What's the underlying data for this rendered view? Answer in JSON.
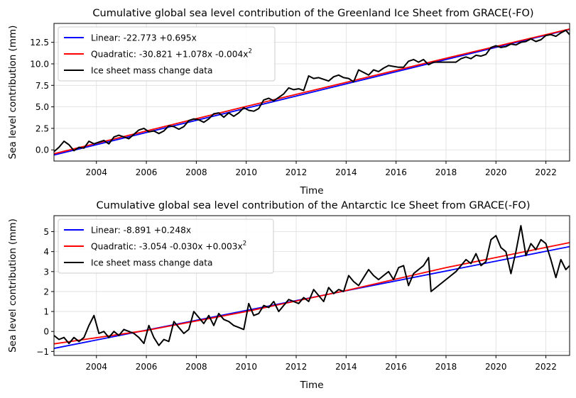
{
  "chart_data": [
    {
      "type": "line",
      "title": "Cumulative global sea level contribution of the Greenland Ice Sheet from GRACE(-FO)",
      "xlabel": "Time",
      "ylabel": "Sea level contribution (mm)",
      "xlim": [
        2002.3,
        2022.95
      ],
      "ylim": [
        -1.3,
        14.7
      ],
      "xticks": [
        "2004",
        "2006",
        "2008",
        "2010",
        "2012",
        "2014",
        "2016",
        "2018",
        "2020",
        "2022"
      ],
      "yticks": [
        "0.0",
        "2.5",
        "5.0",
        "7.5",
        "10.0",
        "12.5"
      ],
      "grid": true,
      "legend_position": "top-left",
      "series": [
        {
          "name": "Linear: -22.773 +0.695x",
          "color": "#0000ff",
          "kind": "fit",
          "x": [
            2002.3,
            2022.95
          ],
          "y": [
            -0.6,
            14.0
          ]
        },
        {
          "name": "Quadratic: -30.821 +1.078x -0.004x",
          "name_sup": "2",
          "color": "#ff0000",
          "kind": "fit",
          "x": [
            2002.3,
            2006.0,
            2010.0,
            2014.0,
            2018.0,
            2022.95
          ],
          "y": [
            -0.45,
            2.2,
            5.05,
            7.85,
            10.65,
            14.05
          ]
        },
        {
          "name": "Ice sheet mass change data",
          "color": "#000000",
          "kind": "data",
          "x": [
            2002.3,
            2002.5,
            2002.7,
            2002.9,
            2003.1,
            2003.3,
            2003.5,
            2003.7,
            2003.9,
            2004.1,
            2004.3,
            2004.5,
            2004.7,
            2004.9,
            2005.1,
            2005.3,
            2005.5,
            2005.7,
            2005.9,
            2006.1,
            2006.3,
            2006.5,
            2006.7,
            2006.9,
            2007.1,
            2007.3,
            2007.5,
            2007.7,
            2007.9,
            2008.1,
            2008.3,
            2008.5,
            2008.7,
            2008.9,
            2009.1,
            2009.3,
            2009.5,
            2009.7,
            2009.9,
            2010.1,
            2010.3,
            2010.5,
            2010.7,
            2010.9,
            2011.1,
            2011.3,
            2011.5,
            2011.7,
            2011.9,
            2012.1,
            2012.3,
            2012.5,
            2012.7,
            2012.9,
            2013.1,
            2013.3,
            2013.5,
            2013.7,
            2013.9,
            2014.1,
            2014.3,
            2014.5,
            2014.7,
            2014.9,
            2015.1,
            2015.3,
            2015.5,
            2015.7,
            2015.9,
            2016.1,
            2016.3,
            2016.5,
            2016.7,
            2016.9,
            2017.1,
            2017.3,
            2017.5,
            2018.4,
            2018.6,
            2018.8,
            2019.0,
            2019.2,
            2019.4,
            2019.6,
            2019.8,
            2020.0,
            2020.2,
            2020.4,
            2020.6,
            2020.8,
            2021.0,
            2021.2,
            2021.4,
            2021.6,
            2021.8,
            2022.0,
            2022.2,
            2022.4,
            2022.6,
            2022.8,
            2022.95
          ],
          "y": [
            -0.2,
            0.3,
            1.0,
            0.6,
            -0.1,
            0.3,
            0.2,
            1.0,
            0.7,
            0.9,
            1.1,
            0.7,
            1.5,
            1.7,
            1.5,
            1.3,
            1.8,
            2.3,
            2.5,
            2.1,
            2.2,
            1.9,
            2.2,
            2.8,
            2.7,
            2.4,
            2.7,
            3.4,
            3.6,
            3.5,
            3.2,
            3.6,
            4.2,
            4.3,
            3.8,
            4.3,
            3.9,
            4.3,
            4.9,
            4.6,
            4.5,
            4.8,
            5.8,
            6.0,
            5.7,
            6.1,
            6.5,
            7.2,
            7.0,
            7.1,
            6.9,
            8.6,
            8.3,
            8.4,
            8.2,
            8.0,
            8.5,
            8.7,
            8.4,
            8.3,
            7.9,
            9.3,
            9.0,
            8.7,
            9.3,
            9.1,
            9.5,
            9.8,
            9.7,
            9.6,
            9.6,
            10.3,
            10.5,
            10.2,
            10.5,
            9.9,
            10.2,
            10.2,
            10.6,
            10.8,
            10.6,
            11.0,
            10.9,
            11.1,
            11.9,
            12.1,
            11.9,
            12.0,
            12.3,
            12.2,
            12.5,
            12.6,
            12.9,
            12.6,
            12.8,
            13.3,
            13.4,
            13.2,
            13.6,
            13.9,
            13.4
          ]
        }
      ]
    },
    {
      "type": "line",
      "title": "Cumulative global sea level contribution of the Antarctic Ice Sheet from GRACE(-FO)",
      "xlabel": "Time",
      "ylabel": "Sea level contribution (mm)",
      "xlim": [
        2002.3,
        2022.95
      ],
      "ylim": [
        -1.2,
        5.8
      ],
      "xticks": [
        "2004",
        "2006",
        "2008",
        "2010",
        "2012",
        "2014",
        "2016",
        "2018",
        "2020",
        "2022"
      ],
      "yticks": [
        "−1",
        "0",
        "1",
        "2",
        "3",
        "4",
        "5"
      ],
      "grid": true,
      "legend_position": "top-left",
      "series": [
        {
          "name": "Linear: -8.891 +0.248x",
          "color": "#0000ff",
          "kind": "fit",
          "x": [
            2002.3,
            2022.95
          ],
          "y": [
            -0.85,
            4.25
          ]
        },
        {
          "name": "Quadratic: -3.054 -0.030x +0.003x",
          "name_sup": "2",
          "color": "#ff0000",
          "kind": "fit",
          "x": [
            2002.3,
            2006.0,
            2010.0,
            2014.0,
            2018.0,
            2022.95
          ],
          "y": [
            -0.62,
            0.05,
            1.0,
            2.05,
            3.2,
            4.45
          ]
        },
        {
          "name": "Ice sheet mass change data",
          "color": "#000000",
          "kind": "data",
          "x": [
            2002.3,
            2002.5,
            2002.7,
            2002.9,
            2003.1,
            2003.3,
            2003.5,
            2003.7,
            2003.9,
            2004.1,
            2004.3,
            2004.5,
            2004.7,
            2004.9,
            2005.1,
            2005.3,
            2005.5,
            2005.7,
            2005.9,
            2006.1,
            2006.3,
            2006.5,
            2006.7,
            2006.9,
            2007.1,
            2007.3,
            2007.5,
            2007.7,
            2007.9,
            2008.1,
            2008.3,
            2008.5,
            2008.7,
            2008.9,
            2009.1,
            2009.3,
            2009.5,
            2009.7,
            2009.9,
            2010.1,
            2010.3,
            2010.5,
            2010.7,
            2010.9,
            2011.1,
            2011.3,
            2011.5,
            2011.7,
            2011.9,
            2012.1,
            2012.3,
            2012.5,
            2012.7,
            2012.9,
            2013.1,
            2013.3,
            2013.5,
            2013.7,
            2013.9,
            2014.1,
            2014.3,
            2014.5,
            2014.7,
            2014.9,
            2015.1,
            2015.3,
            2015.5,
            2015.7,
            2015.9,
            2016.1,
            2016.3,
            2016.5,
            2016.7,
            2016.9,
            2017.1,
            2017.3,
            2017.4,
            2018.4,
            2018.6,
            2018.8,
            2019.0,
            2019.2,
            2019.4,
            2019.6,
            2019.8,
            2020.0,
            2020.2,
            2020.4,
            2020.6,
            2020.8,
            2021.0,
            2021.2,
            2021.4,
            2021.6,
            2021.8,
            2022.0,
            2022.2,
            2022.4,
            2022.6,
            2022.8,
            2022.95
          ],
          "y": [
            -0.2,
            -0.4,
            -0.3,
            -0.6,
            -0.3,
            -0.5,
            -0.3,
            0.3,
            0.8,
            -0.1,
            0.0,
            -0.3,
            0.0,
            -0.2,
            0.1,
            0.0,
            -0.1,
            -0.3,
            -0.6,
            0.3,
            -0.3,
            -0.7,
            -0.4,
            -0.5,
            0.5,
            0.2,
            -0.1,
            0.1,
            1.0,
            0.7,
            0.4,
            0.8,
            0.3,
            0.9,
            0.6,
            0.5,
            0.3,
            0.2,
            0.1,
            1.4,
            0.8,
            0.9,
            1.3,
            1.2,
            1.5,
            1.0,
            1.3,
            1.6,
            1.5,
            1.4,
            1.7,
            1.5,
            2.1,
            1.8,
            1.5,
            2.2,
            1.9,
            2.1,
            2.0,
            2.8,
            2.5,
            2.3,
            2.7,
            3.1,
            2.8,
            2.6,
            2.8,
            3.0,
            2.6,
            3.2,
            3.3,
            2.3,
            2.9,
            3.1,
            3.3,
            3.7,
            2.0,
            3.0,
            3.3,
            3.6,
            3.4,
            3.9,
            3.3,
            3.5,
            4.6,
            4.8,
            4.2,
            4.0,
            2.9,
            4.0,
            5.3,
            3.8,
            4.4,
            4.1,
            4.6,
            4.4,
            3.6,
            2.7,
            3.6,
            3.1,
            3.3
          ]
        }
      ]
    }
  ]
}
